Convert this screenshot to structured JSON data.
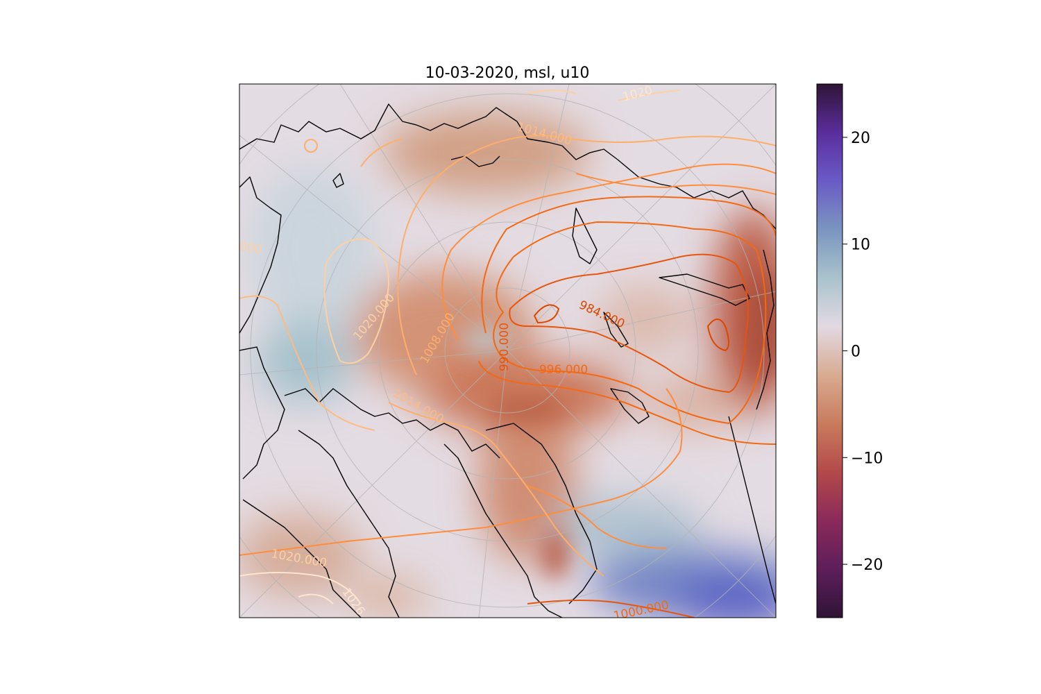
{
  "title": "10-03-2020, msl, u10",
  "colorbar": {
    "min": -25,
    "max": 25,
    "ticks": [
      20,
      10,
      0,
      -10,
      -20
    ],
    "tick_labels": [
      "20",
      "10",
      "0",
      "−10",
      "−20"
    ],
    "colormap": "twilight_shifted",
    "stops": [
      "#2f1436",
      "#5e1e5b",
      "#8a2a5a",
      "#b34a4a",
      "#c97b5d",
      "#d8ab91",
      "#e2d9e2",
      "#a9c3cc",
      "#7a95c0",
      "#6a5bc6",
      "#5a2e9c",
      "#2f1436"
    ]
  },
  "map": {
    "projection": "north-polar-stereographic",
    "shaded_field": "u10",
    "contour_field": "msl"
  },
  "contour_labels": [
    {
      "text": "1014.000",
      "color": "#fdbb84"
    },
    {
      "text": "1020.000",
      "color": "#fdd0a2"
    },
    {
      "text": "1008.000",
      "color": "#fdae6b"
    },
    {
      "text": "990.000",
      "color": "#e6550d"
    },
    {
      "text": "996.000",
      "color": "#f16913"
    },
    {
      "text": "984.000",
      "color": "#d94801"
    },
    {
      "text": "1014.000",
      "color": "#fdbb84"
    },
    {
      "text": "1020.000",
      "color": "#fdd0a2"
    },
    {
      "text": "1000.000",
      "color": "#f16913"
    },
    {
      "text": "1026",
      "color": "#fee6ce"
    },
    {
      "text": "1000",
      "color": "#fdd0a2"
    },
    {
      "text": "1020",
      "color": "#fee6ce"
    }
  ]
}
